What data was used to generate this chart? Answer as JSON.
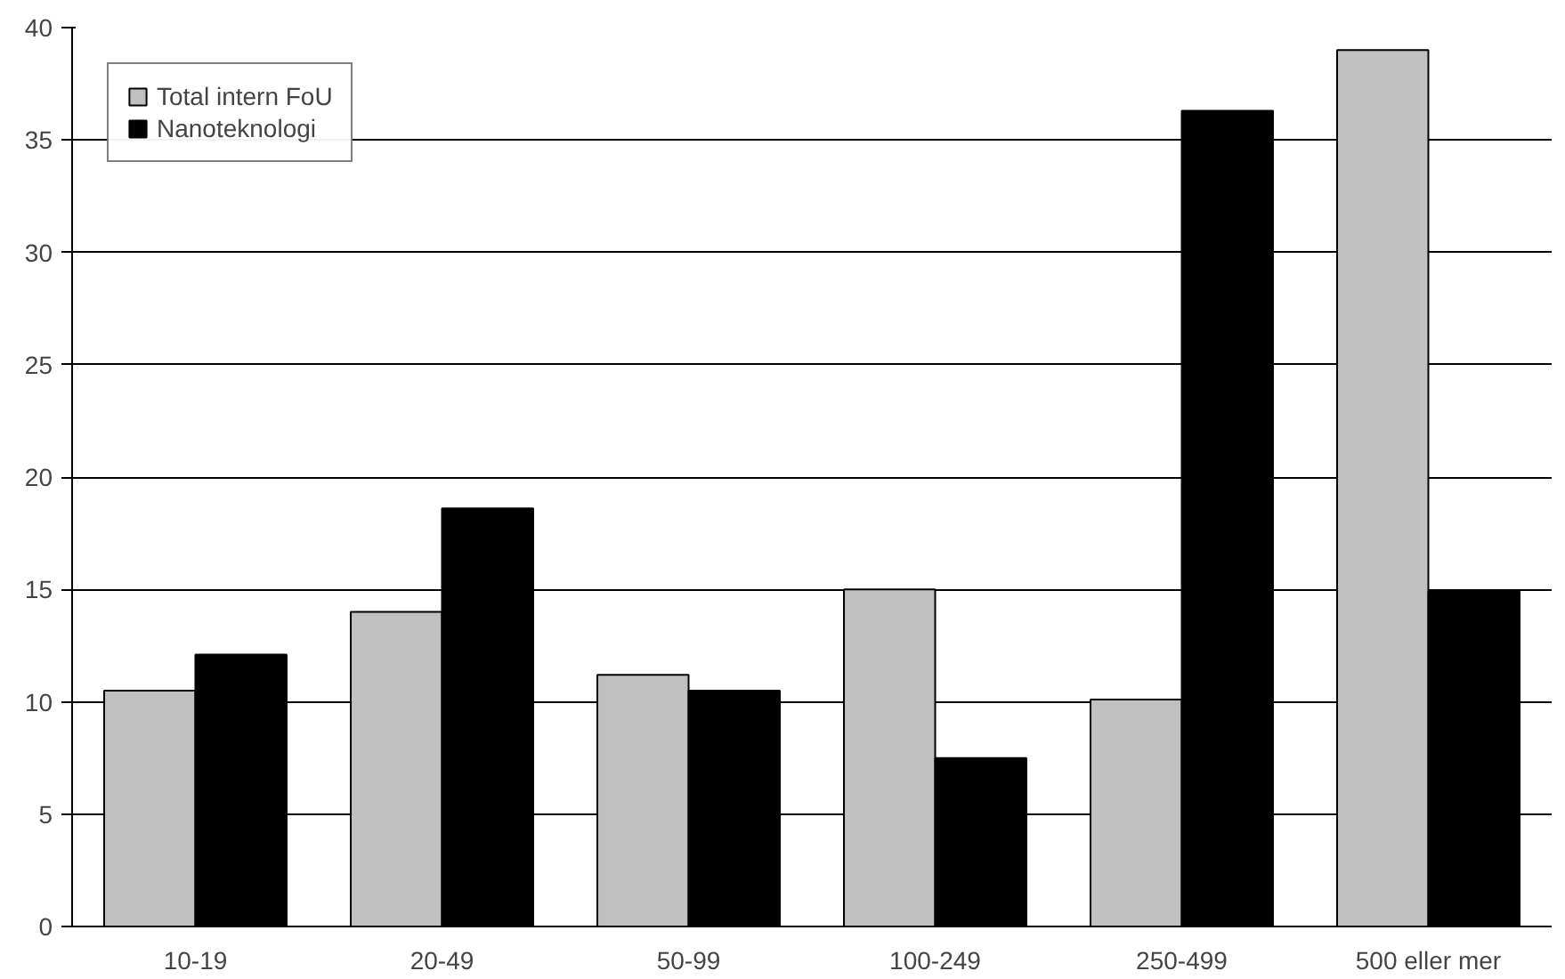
{
  "chart_data": {
    "type": "bar",
    "categories": [
      "10-19",
      "20-49",
      "50-99",
      "100-249",
      "250-499",
      "500 eller mer"
    ],
    "series": [
      {
        "name": "Total intern FoU",
        "color": "#c0c0c0",
        "values": [
          10.5,
          14.0,
          11.2,
          15.0,
          10.1,
          39.0
        ]
      },
      {
        "name": "Nanoteknologi",
        "color": "#000000",
        "values": [
          12.1,
          18.6,
          10.5,
          7.5,
          36.3,
          14.9
        ]
      }
    ],
    "ylim": [
      0,
      40
    ],
    "yticks": [
      0,
      5,
      10,
      15,
      20,
      25,
      30,
      35,
      40
    ],
    "grid": "y",
    "legend": "top left"
  }
}
